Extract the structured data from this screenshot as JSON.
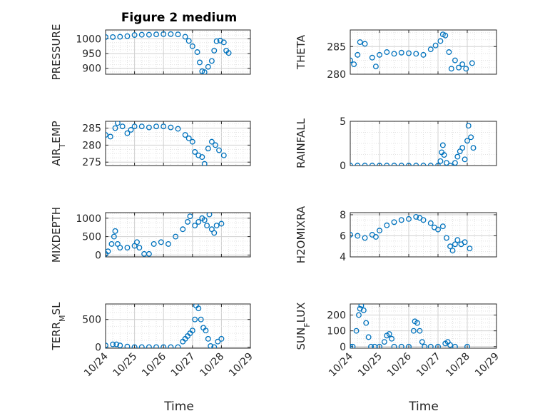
{
  "figure": {
    "title": "Figure 2 medium",
    "xlabel": "Time",
    "colors": {
      "marker": "#0072BD",
      "axis": "#262626",
      "grid": "#BDBDBD"
    }
  },
  "chart_data": [
    {
      "type": "scatter",
      "ylabel": "PRESSURE",
      "ylim": [
        880,
        1030
      ],
      "yticks": [
        900,
        950,
        1000
      ],
      "xlim": [
        "10/24",
        "10/29"
      ],
      "xticks": [
        "10/24",
        "10/25",
        "10/26",
        "10/27",
        "10/28",
        "10/29"
      ],
      "grid": true,
      "points": [
        [
          "10/24 00:00",
          1006
        ],
        [
          "10/24 06:00",
          1006
        ],
        [
          "10/24 12:00",
          1007
        ],
        [
          "10/24 18:00",
          1009
        ],
        [
          "10/25 00:00",
          1013
        ],
        [
          "10/25 06:00",
          1014
        ],
        [
          "10/25 12:00",
          1014
        ],
        [
          "10/25 18:00",
          1015
        ],
        [
          "10/26 00:00",
          1016
        ],
        [
          "10/26 06:00",
          1016
        ],
        [
          "10/26 12:00",
          1015
        ],
        [
          "10/26 18:00",
          1007
        ],
        [
          "10/26 21:00",
          993
        ],
        [
          "10/27 00:00",
          975
        ],
        [
          "10/27 04:00",
          955
        ],
        [
          "10/27 06:00",
          920
        ],
        [
          "10/27 08:00",
          890
        ],
        [
          "10/27 10:00",
          887
        ],
        [
          "10/27 13:00",
          905
        ],
        [
          "10/27 16:00",
          925
        ],
        [
          "10/27 18:00",
          960
        ],
        [
          "10/27 20:00",
          992
        ],
        [
          "10/27 23:00",
          994
        ],
        [
          "10/28 02:00",
          988
        ],
        [
          "10/28 04:00",
          960
        ],
        [
          "10/28 06:00",
          952
        ]
      ]
    },
    {
      "type": "scatter",
      "ylabel": "THETA",
      "ylim": [
        280,
        288
      ],
      "yticks": [
        280,
        285
      ],
      "xlim": [
        "10/24",
        "10/29"
      ],
      "xticks": [
        "10/24",
        "10/25",
        "10/26",
        "10/27",
        "10/28",
        "10/29"
      ],
      "grid": true,
      "points": [
        [
          "10/24 00:00",
          282.5
        ],
        [
          "10/24 03:00",
          281.8
        ],
        [
          "10/24 06:00",
          283.5
        ],
        [
          "10/24 08:00",
          285.8
        ],
        [
          "10/24 12:00",
          285.5
        ],
        [
          "10/24 18:00",
          283
        ],
        [
          "10/24 21:00",
          281.4
        ],
        [
          "10/25 00:00",
          283.5
        ],
        [
          "10/25 06:00",
          284
        ],
        [
          "10/25 12:00",
          283.7
        ],
        [
          "10/25 18:00",
          283.9
        ],
        [
          "10/26 00:00",
          283.8
        ],
        [
          "10/26 06:00",
          283.7
        ],
        [
          "10/26 12:00",
          283.5
        ],
        [
          "10/26 18:00",
          284.5
        ],
        [
          "10/26 22:00",
          285.2
        ],
        [
          "10/27 02:00",
          286
        ],
        [
          "10/27 04:00",
          287.2
        ],
        [
          "10/27 06:00",
          287
        ],
        [
          "10/27 09:00",
          284
        ],
        [
          "10/27 11:00",
          281
        ],
        [
          "10/27 14:00",
          282.5
        ],
        [
          "10/27 17:00",
          281.2
        ],
        [
          "10/27 20:00",
          281.8
        ],
        [
          "10/27 23:00",
          281
        ],
        [
          "10/28 04:00",
          282
        ]
      ]
    },
    {
      "type": "scatter",
      "ylabel": "AIR_TEMP",
      "ylim": [
        274,
        287
      ],
      "yticks": [
        275,
        280,
        285
      ],
      "xlim": [
        "10/24",
        "10/29"
      ],
      "xticks": [
        "10/24",
        "10/25",
        "10/26",
        "10/27",
        "10/28",
        "10/29"
      ],
      "grid": true,
      "points": [
        [
          "10/24 00:00",
          283
        ],
        [
          "10/24 04:00",
          282.5
        ],
        [
          "10/24 08:00",
          285
        ],
        [
          "10/24 10:00",
          286.5
        ],
        [
          "10/24 14:00",
          285.5
        ],
        [
          "10/24 18:00",
          283.5
        ],
        [
          "10/24 21:00",
          284.5
        ],
        [
          "10/25 00:00",
          285.5
        ],
        [
          "10/25 06:00",
          285.5
        ],
        [
          "10/25 12:00",
          285.2
        ],
        [
          "10/25 18:00",
          285.5
        ],
        [
          "10/26 00:00",
          285.5
        ],
        [
          "10/26 06:00",
          285.2
        ],
        [
          "10/26 12:00",
          284.8
        ],
        [
          "10/26 18:00",
          283
        ],
        [
          "10/26 21:00",
          282
        ],
        [
          "10/27 00:00",
          281
        ],
        [
          "10/27 02:00",
          278
        ],
        [
          "10/27 05:00",
          277
        ],
        [
          "10/27 08:00",
          276.5
        ],
        [
          "10/27 10:00",
          274.5
        ],
        [
          "10/27 13:00",
          279
        ],
        [
          "10/27 16:00",
          281
        ],
        [
          "10/27 19:00",
          280
        ],
        [
          "10/27 22:00",
          278.5
        ],
        [
          "10/28 02:00",
          277
        ]
      ]
    },
    {
      "type": "scatter",
      "ylabel": "RAINFALL",
      "ylim": [
        0,
        5
      ],
      "yticks": [
        0,
        5
      ],
      "xlim": [
        "10/24",
        "10/29"
      ],
      "xticks": [
        "10/24",
        "10/25",
        "10/26",
        "10/27",
        "10/28",
        "10/29"
      ],
      "grid": true,
      "points": [
        [
          "10/24 00:00",
          0
        ],
        [
          "10/24 06:00",
          0
        ],
        [
          "10/24 12:00",
          0
        ],
        [
          "10/24 18:00",
          0
        ],
        [
          "10/25 00:00",
          0
        ],
        [
          "10/25 06:00",
          0
        ],
        [
          "10/25 12:00",
          0
        ],
        [
          "10/25 18:00",
          0
        ],
        [
          "10/26 00:00",
          0
        ],
        [
          "10/26 06:00",
          0
        ],
        [
          "10/26 12:00",
          0
        ],
        [
          "10/26 18:00",
          0
        ],
        [
          "10/27 00:00",
          0
        ],
        [
          "10/27 02:00",
          0.5
        ],
        [
          "10/27 03:00",
          1.5
        ],
        [
          "10/27 04:00",
          2.3
        ],
        [
          "10/27 05:00",
          1.2
        ],
        [
          "10/27 07:00",
          0.3
        ],
        [
          "10/27 10:00",
          0
        ],
        [
          "10/27 14:00",
          0.3
        ],
        [
          "10/27 16:00",
          1
        ],
        [
          "10/27 18:00",
          1.6
        ],
        [
          "10/27 20:00",
          2
        ],
        [
          "10/27 22:00",
          0.7
        ],
        [
          "10/28 00:00",
          2.8
        ],
        [
          "10/28 01:00",
          4.5
        ],
        [
          "10/28 03:00",
          3.2
        ],
        [
          "10/28 05:00",
          2
        ]
      ]
    },
    {
      "type": "scatter",
      "ylabel": "MIXDEPTH",
      "ylim": [
        -50,
        1150
      ],
      "yticks": [
        0,
        500,
        1000
      ],
      "xlim": [
        "10/24",
        "10/29"
      ],
      "xticks": [
        "10/24",
        "10/25",
        "10/26",
        "10/27",
        "10/28",
        "10/29"
      ],
      "grid": true,
      "points": [
        [
          "10/24 00:00",
          30
        ],
        [
          "10/24 02:00",
          100
        ],
        [
          "10/24 05:00",
          300
        ],
        [
          "10/24 07:00",
          500
        ],
        [
          "10/24 08:00",
          650
        ],
        [
          "10/24 10:00",
          300
        ],
        [
          "10/24 12:00",
          200
        ],
        [
          "10/24 18:00",
          200
        ],
        [
          "10/25 00:00",
          250
        ],
        [
          "10/25 02:00",
          350
        ],
        [
          "10/25 04:00",
          200
        ],
        [
          "10/25 08:00",
          30
        ],
        [
          "10/25 12:00",
          30
        ],
        [
          "10/25 16:00",
          300
        ],
        [
          "10/25 22:00",
          350
        ],
        [
          "10/26 04:00",
          300
        ],
        [
          "10/26 10:00",
          500
        ],
        [
          "10/26 16:00",
          700
        ],
        [
          "10/26 20:00",
          900
        ],
        [
          "10/26 22:00",
          1050
        ],
        [
          "10/27 02:00",
          800
        ],
        [
          "10/27 05:00",
          900
        ],
        [
          "10/27 08:00",
          1000
        ],
        [
          "10/27 10:00",
          950
        ],
        [
          "10/27 12:00",
          800
        ],
        [
          "10/27 14:00",
          1100
        ],
        [
          "10/27 16:00",
          700
        ],
        [
          "10/27 18:00",
          600
        ],
        [
          "10/27 20:00",
          800
        ],
        [
          "10/28 00:00",
          850
        ]
      ]
    },
    {
      "type": "scatter",
      "ylabel": "H2OMIXRA",
      "ylim": [
        4,
        8.2
      ],
      "yticks": [
        4,
        6,
        8
      ],
      "xlim": [
        "10/24",
        "10/29"
      ],
      "xticks": [
        "10/24",
        "10/25",
        "10/26",
        "10/27",
        "10/28",
        "10/29"
      ],
      "grid": true,
      "points": [
        [
          "10/24 00:00",
          6.1
        ],
        [
          "10/24 06:00",
          6
        ],
        [
          "10/24 12:00",
          5.8
        ],
        [
          "10/24 18:00",
          6.1
        ],
        [
          "10/24 21:00",
          5.9
        ],
        [
          "10/25 00:00",
          6.5
        ],
        [
          "10/25 06:00",
          7
        ],
        [
          "10/25 12:00",
          7.3
        ],
        [
          "10/25 18:00",
          7.5
        ],
        [
          "10/26 00:00",
          7.6
        ],
        [
          "10/26 06:00",
          7.8
        ],
        [
          "10/26 09:00",
          7.7
        ],
        [
          "10/26 12:00",
          7.5
        ],
        [
          "10/26 18:00",
          7.2
        ],
        [
          "10/26 21:00",
          6.8
        ],
        [
          "10/27 00:00",
          6.6
        ],
        [
          "10/27 04:00",
          6.9
        ],
        [
          "10/27 07:00",
          5.8
        ],
        [
          "10/27 10:00",
          5
        ],
        [
          "10/27 12:00",
          4.6
        ],
        [
          "10/27 14:00",
          5.2
        ],
        [
          "10/27 16:00",
          5.6
        ],
        [
          "10/27 19:00",
          5.2
        ],
        [
          "10/27 22:00",
          5.4
        ],
        [
          "10/28 02:00",
          4.8
        ]
      ]
    },
    {
      "type": "scatter",
      "ylabel": "TERR_MSL",
      "ylim": [
        -20,
        780
      ],
      "yticks": [
        0,
        500
      ],
      "xlim": [
        "10/24",
        "10/29"
      ],
      "xticks": [
        "10/24",
        "10/25",
        "10/26",
        "10/27",
        "10/28",
        "10/29"
      ],
      "grid": true,
      "points": [
        [
          "10/24 00:00",
          30
        ],
        [
          "10/24 06:00",
          50
        ],
        [
          "10/24 09:00",
          50
        ],
        [
          "10/24 12:00",
          30
        ],
        [
          "10/24 18:00",
          10
        ],
        [
          "10/25 00:00",
          0
        ],
        [
          "10/25 06:00",
          0
        ],
        [
          "10/25 12:00",
          0
        ],
        [
          "10/25 18:00",
          0
        ],
        [
          "10/26 00:00",
          0
        ],
        [
          "10/26 06:00",
          0
        ],
        [
          "10/26 12:00",
          0
        ],
        [
          "10/26 16:00",
          100
        ],
        [
          "10/26 18:00",
          150
        ],
        [
          "10/26 20:00",
          200
        ],
        [
          "10/26 22:00",
          250
        ],
        [
          "10/27 00:00",
          300
        ],
        [
          "10/27 02:00",
          500
        ],
        [
          "10/27 03:00",
          750
        ],
        [
          "10/27 05:00",
          700
        ],
        [
          "10/27 07:00",
          500
        ],
        [
          "10/27 09:00",
          350
        ],
        [
          "10/27 11:00",
          300
        ],
        [
          "10/27 13:00",
          150
        ],
        [
          "10/27 15:00",
          20
        ],
        [
          "10/27 18:00",
          0
        ],
        [
          "10/27 21:00",
          100
        ],
        [
          "10/28 00:00",
          150
        ]
      ]
    },
    {
      "type": "scatter",
      "ylabel": "SUN_FLUX",
      "ylim": [
        -10,
        270
      ],
      "yticks": [
        0,
        100,
        200
      ],
      "xlim": [
        "10/24",
        "10/29"
      ],
      "xticks": [
        "10/24",
        "10/25",
        "10/26",
        "10/27",
        "10/28",
        "10/29"
      ],
      "grid": true,
      "points": [
        [
          "10/24 00:00",
          0
        ],
        [
          "10/24 02:00",
          0
        ],
        [
          "10/24 05:00",
          100
        ],
        [
          "10/24 07:00",
          200
        ],
        [
          "10/24 08:00",
          240
        ],
        [
          "10/24 09:00",
          260
        ],
        [
          "10/24 11:00",
          230
        ],
        [
          "10/24 13:00",
          150
        ],
        [
          "10/24 15:00",
          60
        ],
        [
          "10/24 17:00",
          0
        ],
        [
          "10/24 20:00",
          0
        ],
        [
          "10/25 00:00",
          0
        ],
        [
          "10/25 04:00",
          30
        ],
        [
          "10/25 06:00",
          70
        ],
        [
          "10/25 08:00",
          80
        ],
        [
          "10/25 10:00",
          50
        ],
        [
          "10/25 12:00",
          0
        ],
        [
          "10/25 18:00",
          0
        ],
        [
          "10/26 00:00",
          0
        ],
        [
          "10/26 04:00",
          100
        ],
        [
          "10/26 05:00",
          160
        ],
        [
          "10/26 07:00",
          150
        ],
        [
          "10/26 09:00",
          100
        ],
        [
          "10/26 11:00",
          30
        ],
        [
          "10/26 13:00",
          0
        ],
        [
          "10/26 18:00",
          0
        ],
        [
          "10/27 00:00",
          0
        ],
        [
          "10/27 06:00",
          20
        ],
        [
          "10/27 08:00",
          30
        ],
        [
          "10/27 10:00",
          10
        ],
        [
          "10/27 14:00",
          0
        ],
        [
          "10/28 00:00",
          0
        ]
      ]
    }
  ]
}
